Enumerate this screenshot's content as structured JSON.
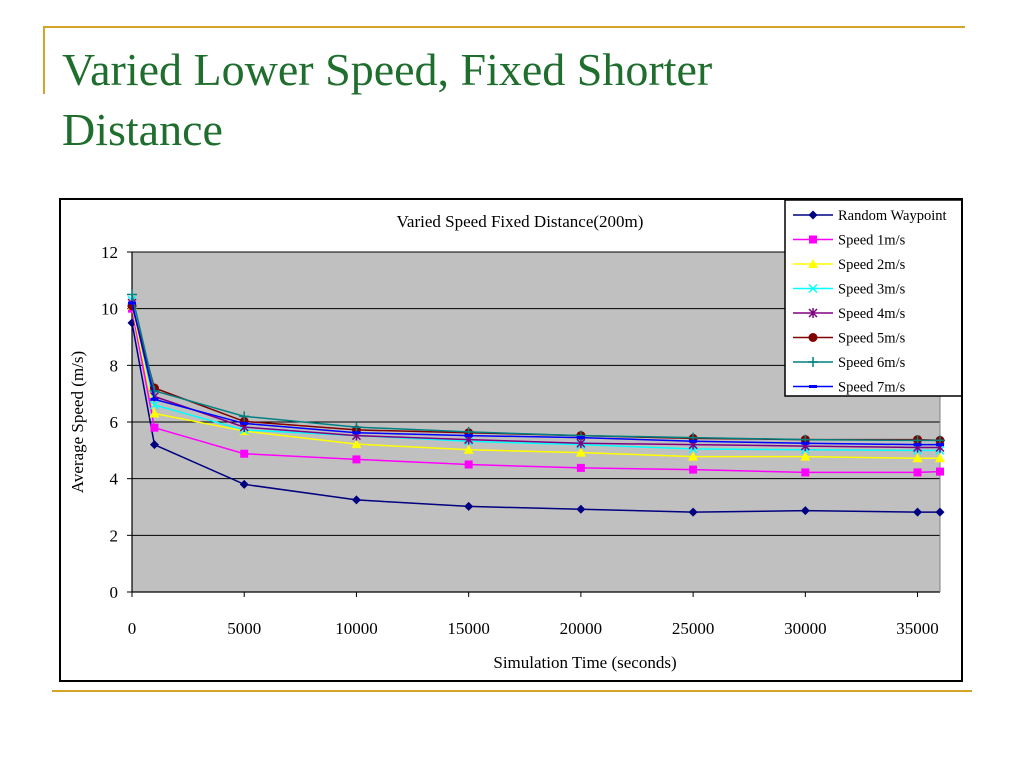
{
  "slide": {
    "title": "Varied Lower Speed, Fixed Shorter Distance"
  },
  "chart_data": {
    "type": "line",
    "title": "Varied Speed Fixed Distance(200m)",
    "xlabel": "Simulation Time (seconds)",
    "ylabel": "Average Speed (m/s)",
    "xlim": [
      0,
      36000
    ],
    "ylim": [
      0,
      12
    ],
    "xticks": [
      0,
      5000,
      10000,
      15000,
      20000,
      25000,
      30000,
      35000
    ],
    "yticks": [
      0,
      2,
      4,
      6,
      8,
      10,
      12
    ],
    "grid": "horizontal",
    "plot_background": "#c0c0c0",
    "legend_position": "top-right",
    "x": [
      0,
      1000,
      5000,
      10000,
      15000,
      20000,
      25000,
      30000,
      35000,
      36000
    ],
    "series": [
      {
        "name": "Random Waypoint",
        "color": "#000080",
        "marker": "diamond",
        "values": [
          9.5,
          5.2,
          3.8,
          3.25,
          3.02,
          2.92,
          2.82,
          2.87,
          2.82,
          2.82
        ]
      },
      {
        "name": "Speed 1m/s",
        "color": "#ff00ff",
        "marker": "square",
        "values": [
          10.0,
          5.8,
          4.88,
          4.68,
          4.5,
          4.38,
          4.32,
          4.22,
          4.22,
          4.25
        ]
      },
      {
        "name": "Speed 2m/s",
        "color": "#ffff00",
        "marker": "triangle",
        "values": [
          10.1,
          6.3,
          5.68,
          5.22,
          5.02,
          4.92,
          4.78,
          4.78,
          4.72,
          4.72
        ]
      },
      {
        "name": "Speed 3m/s",
        "color": "#00ffff",
        "marker": "x",
        "values": [
          10.3,
          6.6,
          5.72,
          5.52,
          5.32,
          5.2,
          5.05,
          5.02,
          5.0,
          5.0
        ]
      },
      {
        "name": "Speed 4m/s",
        "color": "#800080",
        "marker": "star",
        "values": [
          10.2,
          6.9,
          5.82,
          5.52,
          5.38,
          5.25,
          5.2,
          5.15,
          5.1,
          5.1
        ]
      },
      {
        "name": "Speed 5m/s",
        "color": "#800000",
        "marker": "circle",
        "values": [
          10.1,
          7.2,
          6.02,
          5.72,
          5.62,
          5.52,
          5.42,
          5.38,
          5.38,
          5.35
        ]
      },
      {
        "name": "Speed 6m/s",
        "color": "#008080",
        "marker": "plus",
        "values": [
          10.5,
          7.1,
          6.2,
          5.82,
          5.65,
          5.52,
          5.45,
          5.38,
          5.35,
          5.35
        ]
      },
      {
        "name": "Speed 7m/s",
        "color": "#0000ff",
        "marker": "dash",
        "values": [
          10.2,
          6.8,
          5.95,
          5.62,
          5.52,
          5.45,
          5.32,
          5.25,
          5.2,
          5.2
        ]
      }
    ]
  }
}
